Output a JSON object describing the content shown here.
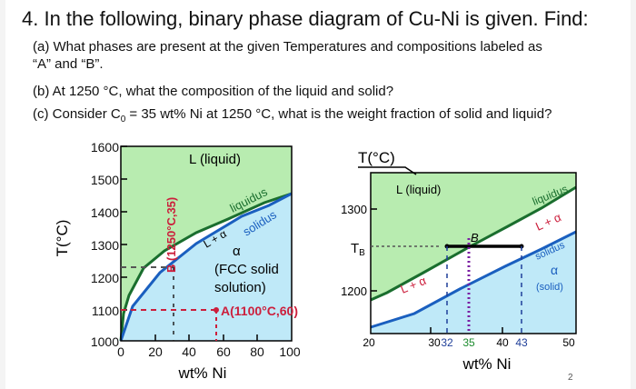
{
  "question": {
    "title": "4. In the following, binary phase diagram of Cu-Ni is given. Find:",
    "part_a_line1": "(a) What phases are present at the given Temperatures and compositions labeled as",
    "part_a_line2": "“A” and “B”.",
    "part_b": "(b) At 1250 °C, what the composition of the liquid and solid?",
    "part_c_pre": "(c) Consider C",
    "part_c_sub": "0",
    "part_c_post": " = 35 wt% Ni at 1250 °C, what is the weight fraction of solid and liquid?"
  },
  "left_diagram": {
    "y_axis_label": "T(°C)",
    "y_ticks": [
      "1600",
      "1500",
      "1400",
      "1300",
      "1200",
      "1100",
      "1000"
    ],
    "x_ticks": [
      "0",
      "20",
      "40",
      "60",
      "80",
      "100"
    ],
    "x_axis_label": "wt% Ni",
    "liquid_label": "L (liquid)",
    "liquidus_label": "liquidus",
    "solidus_label": "solidus",
    "two_phase_label": "L + α",
    "alpha_label": "α",
    "fcc_label_1": "(FCC solid",
    "fcc_label_2": "solution)",
    "point_a_label": "A(1100°C,60)",
    "point_b_label": "B (1250°C,35)",
    "colors": {
      "liquid": "#b8ecb0",
      "solid": "#bfe9f8",
      "liquidus": "#1a6e2e",
      "solidus": "#1a5fbf",
      "annotation": "#cc1f3c"
    }
  },
  "right_diagram": {
    "y_axis_label": "T(°C)",
    "y_ticks": [
      "1300",
      "1200"
    ],
    "tb_label": "T",
    "tb_sub": "B",
    "x_ticks": [
      "20",
      "30",
      "32",
      "35",
      "40",
      "43",
      "50"
    ],
    "x_axis_label": "wt% Ni",
    "liquid_label": "L (liquid)",
    "liquidus_label": "liquidus",
    "l_alpha_upper": "L + α",
    "l_alpha_lower": "L + α",
    "solidus_label": "solidus",
    "alpha_label": "α",
    "solid_label": "(solid)",
    "point_b_label": "B",
    "colors": {
      "liquid": "#b8ecb0",
      "solid": "#bfe9f8",
      "x32": "#1f3f99",
      "x35": "#1c8c2e",
      "x43": "#1f3f99",
      "dots": "#7a1fa2"
    }
  },
  "page_number": "2"
}
